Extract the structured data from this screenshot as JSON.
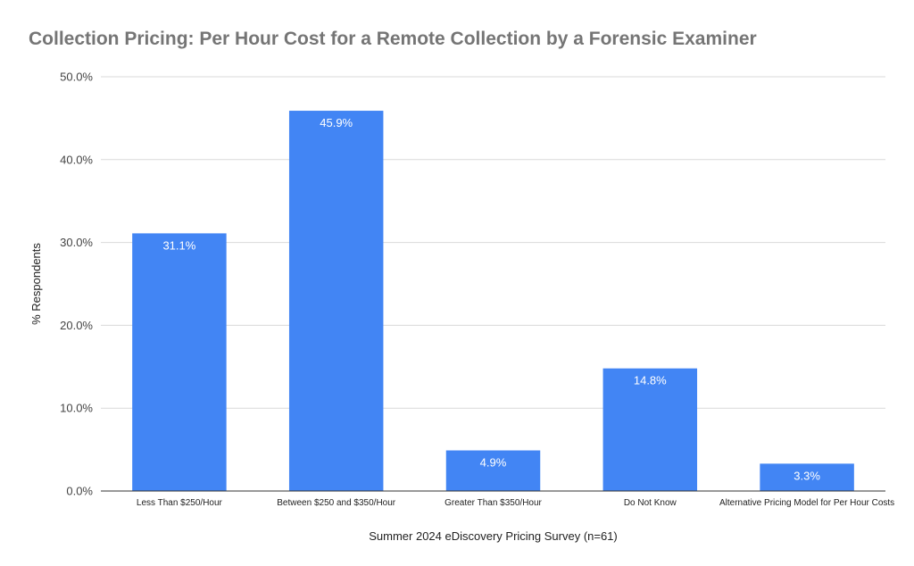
{
  "chart_data": {
    "type": "bar",
    "title": "Collection Pricing: Per Hour Cost for a Remote Collection by a Forensic Examiner",
    "xlabel": "Summer 2024 eDiscovery Pricing Survey (n=61)",
    "ylabel": "% Respondents",
    "categories": [
      "Less Than $250/Hour",
      "Between $250 and $350/Hour",
      "Greater Than $350/Hour",
      "Do Not Know",
      "Alternative Pricing Model for Per Hour Costs"
    ],
    "values": [
      31.1,
      45.9,
      4.9,
      14.8,
      3.3
    ],
    "value_labels": [
      "31.1%",
      "45.9%",
      "4.9%",
      "14.8%",
      "3.3%"
    ],
    "ylim": [
      0,
      50
    ],
    "yticks": [
      0,
      10,
      20,
      30,
      40,
      50
    ],
    "ytick_labels": [
      "0.0%",
      "10.0%",
      "20.0%",
      "30.0%",
      "40.0%",
      "50.0%"
    ],
    "grid": true,
    "bar_color": "#4285f4",
    "grid_color": "#d9d9d9",
    "axis_color": "#333333"
  }
}
